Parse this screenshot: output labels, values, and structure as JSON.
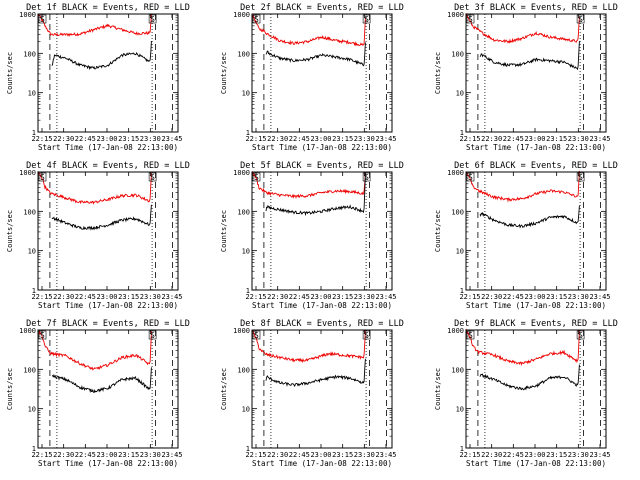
{
  "colors": {
    "events": "#000000",
    "lld": "#ee0000",
    "frame": "#000000",
    "background": "#ffffff"
  },
  "chart_data": [
    {
      "type": "line",
      "title": "Det 1f BLACK = Events, RED = LLD",
      "xlabel": "Start Time (17-Jan-08 22:13:00)",
      "ylabel": "Counts/sec",
      "xlim": [
        0,
        100
      ],
      "ylim": [
        1,
        1000
      ],
      "yscale": "log",
      "xticks": [
        "22:15",
        "22:30",
        "22:45",
        "23:00",
        "23:15",
        "23:30",
        "23:45"
      ],
      "yticks": [
        "1",
        "10",
        "100",
        "1000"
      ],
      "saa_markers": [
        "S",
        "S"
      ],
      "dashed_lines": [
        8.5,
        84,
        96
      ],
      "dotted_lines": [
        13.5,
        81.5
      ],
      "series": [
        {
          "name": "LLD",
          "color": "red",
          "x": [
            0,
            3,
            5,
            8.5,
            10,
            20,
            30,
            40,
            50,
            60,
            70,
            80,
            81
          ],
          "y": [
            1000,
            700,
            500,
            320,
            300,
            300,
            310,
            400,
            510,
            400,
            320,
            330,
            1000
          ]
        },
        {
          "name": "Events",
          "color": "black",
          "x": [
            10,
            11,
            12,
            20,
            30,
            40,
            50,
            60,
            70,
            80,
            81
          ],
          "y": [
            45,
            70,
            90,
            75,
            50,
            42,
            50,
            90,
            100,
            60,
            200
          ]
        }
      ]
    },
    {
      "type": "line",
      "title": "Det 2f BLACK = Events, RED = LLD",
      "xlabel": "Start Time (17-Jan-08 22:13:00)",
      "ylabel": "Counts/sec",
      "xlim": [
        0,
        100
      ],
      "ylim": [
        1,
        1000
      ],
      "yscale": "log",
      "xticks": [
        "22:15",
        "22:30",
        "22:45",
        "23:00",
        "23:15",
        "23:30",
        "23:45"
      ],
      "yticks": [
        "1",
        "10",
        "100",
        "1000"
      ],
      "saa_markers": [
        "S",
        "S"
      ],
      "dashed_lines": [
        8.5,
        84,
        96
      ],
      "dotted_lines": [
        13.5,
        81.5
      ],
      "series": [
        {
          "name": "LLD",
          "color": "red",
          "x": [
            0,
            3,
            5,
            8.5,
            10,
            20,
            30,
            40,
            50,
            60,
            70,
            80,
            81
          ],
          "y": [
            1000,
            600,
            420,
            370,
            330,
            210,
            180,
            200,
            260,
            210,
            190,
            160,
            800
          ]
        },
        {
          "name": "Events",
          "color": "black",
          "x": [
            10,
            11,
            12,
            20,
            30,
            40,
            50,
            60,
            70,
            80,
            81
          ],
          "y": [
            95,
            110,
            100,
            75,
            65,
            70,
            90,
            80,
            70,
            50,
            200
          ]
        }
      ]
    },
    {
      "type": "line",
      "title": "Det 3f BLACK = Events, RED = LLD",
      "xlabel": "Start Time (17-Jan-08 22:13:00)",
      "ylabel": "Counts/sec",
      "xlim": [
        0,
        100
      ],
      "ylim": [
        1,
        1000
      ],
      "yscale": "log",
      "xticks": [
        "22:15",
        "22:30",
        "22:45",
        "23:00",
        "23:15",
        "23:30",
        "23:45"
      ],
      "yticks": [
        "1",
        "10",
        "100",
        "1000"
      ],
      "saa_markers": [
        "S",
        "S"
      ],
      "dashed_lines": [
        8.5,
        84,
        96
      ],
      "dotted_lines": [
        13.5,
        81.5
      ],
      "series": [
        {
          "name": "LLD",
          "color": "red",
          "x": [
            0,
            3,
            5,
            8.5,
            10,
            20,
            30,
            40,
            50,
            60,
            70,
            80,
            81
          ],
          "y": [
            1000,
            650,
            480,
            400,
            360,
            220,
            200,
            240,
            330,
            260,
            230,
            200,
            900
          ]
        },
        {
          "name": "Events",
          "color": "black",
          "x": [
            10,
            11,
            12,
            20,
            30,
            40,
            50,
            60,
            70,
            80,
            81
          ],
          "y": [
            80,
            95,
            90,
            60,
            50,
            52,
            70,
            65,
            60,
            40,
            200
          ]
        }
      ]
    },
    {
      "type": "line",
      "title": "Det 4f BLACK = Events, RED = LLD",
      "xlabel": "Start Time (17-Jan-08 22:13:00)",
      "ylabel": "Counts/sec",
      "xlim": [
        0,
        100
      ],
      "ylim": [
        1,
        1000
      ],
      "yscale": "log",
      "xticks": [
        "22:15",
        "22:30",
        "22:45",
        "23:00",
        "23:15",
        "23:30",
        "23:45"
      ],
      "yticks": [
        "1",
        "10",
        "100",
        "1000"
      ],
      "saa_markers": [
        "S",
        "S"
      ],
      "dashed_lines": [
        8.5,
        84,
        96
      ],
      "dotted_lines": [
        13.5,
        81.5
      ],
      "series": [
        {
          "name": "LLD",
          "color": "red",
          "x": [
            0,
            3,
            5,
            8.5,
            10,
            20,
            30,
            40,
            50,
            60,
            70,
            80,
            81
          ],
          "y": [
            1000,
            700,
            420,
            300,
            280,
            220,
            170,
            170,
            200,
            250,
            260,
            180,
            1000
          ]
        },
        {
          "name": "Events",
          "color": "black",
          "x": [
            10,
            11,
            12,
            20,
            30,
            40,
            50,
            60,
            70,
            80,
            81
          ],
          "y": [
            60,
            70,
            65,
            50,
            38,
            38,
            45,
            60,
            65,
            45,
            150
          ]
        }
      ]
    },
    {
      "type": "line",
      "title": "Det 5f BLACK = Events, RED = LLD",
      "xlabel": "Start Time (17-Jan-08 22:13:00)",
      "ylabel": "Counts/sec",
      "xlim": [
        0,
        100
      ],
      "ylim": [
        1,
        1000
      ],
      "yscale": "log",
      "xticks": [
        "22:15",
        "22:30",
        "22:45",
        "23:00",
        "23:15",
        "23:30",
        "23:45"
      ],
      "yticks": [
        "1",
        "10",
        "100",
        "1000"
      ],
      "saa_markers": [
        "S",
        "S"
      ],
      "dashed_lines": [
        8.5,
        84,
        96
      ],
      "dotted_lines": [
        13.5,
        81.5
      ],
      "series": [
        {
          "name": "LLD",
          "color": "red",
          "x": [
            0,
            3,
            5,
            8.5,
            10,
            20,
            30,
            40,
            50,
            60,
            70,
            80,
            81
          ],
          "y": [
            1000,
            700,
            400,
            330,
            300,
            260,
            240,
            250,
            300,
            330,
            320,
            280,
            1000
          ]
        },
        {
          "name": "Events",
          "color": "black",
          "x": [
            10,
            11,
            12,
            20,
            30,
            40,
            50,
            60,
            70,
            80,
            81
          ],
          "y": [
            110,
            130,
            125,
            110,
            95,
            90,
            100,
            120,
            130,
            100,
            900
          ]
        }
      ]
    },
    {
      "type": "line",
      "title": "Det 6f BLACK = Events, RED = LLD",
      "xlabel": "Start Time (17-Jan-08 22:13:00)",
      "ylabel": "Counts/sec",
      "xlim": [
        0,
        100
      ],
      "ylim": [
        1,
        1000
      ],
      "yscale": "log",
      "xticks": [
        "22:15",
        "22:30",
        "22:45",
        "23:00",
        "23:15",
        "23:30",
        "23:45"
      ],
      "yticks": [
        "1",
        "10",
        "100",
        "1000"
      ],
      "saa_markers": [
        "S",
        "S"
      ],
      "dashed_lines": [
        8.5,
        84,
        96
      ],
      "dotted_lines": [
        13.5,
        81.5
      ],
      "series": [
        {
          "name": "LLD",
          "color": "red",
          "x": [
            0,
            3,
            5,
            8.5,
            10,
            20,
            30,
            40,
            50,
            60,
            70,
            80,
            81
          ],
          "y": [
            1000,
            650,
            420,
            350,
            320,
            230,
            200,
            210,
            280,
            330,
            310,
            230,
            1000
          ]
        },
        {
          "name": "Events",
          "color": "black",
          "x": [
            10,
            11,
            12,
            20,
            30,
            40,
            50,
            60,
            70,
            80,
            81
          ],
          "y": [
            80,
            90,
            85,
            60,
            45,
            42,
            50,
            70,
            75,
            50,
            150
          ]
        }
      ]
    },
    {
      "type": "line",
      "title": "Det 7f BLACK = Events, RED = LLD",
      "xlabel": "Start Time (17-Jan-08 22:13:00)",
      "ylabel": "Counts/sec",
      "xlim": [
        0,
        100
      ],
      "ylim": [
        1,
        1000
      ],
      "yscale": "log",
      "xticks": [
        "22:15",
        "22:30",
        "22:45",
        "23:00",
        "23:15",
        "23:30",
        "23:45"
      ],
      "yticks": [
        "1",
        "10",
        "100",
        "1000"
      ],
      "saa_markers": [
        "S",
        "S"
      ],
      "dashed_lines": [
        8.5,
        84,
        96
      ],
      "dotted_lines": [
        13.5,
        81.5
      ],
      "series": [
        {
          "name": "LLD",
          "color": "red",
          "x": [
            0,
            3,
            5,
            8.5,
            10,
            20,
            30,
            40,
            50,
            60,
            70,
            80,
            81
          ],
          "y": [
            1000,
            700,
            400,
            260,
            250,
            220,
            140,
            100,
            130,
            200,
            230,
            130,
            1000
          ]
        },
        {
          "name": "Events",
          "color": "black",
          "x": [
            10,
            11,
            12,
            20,
            30,
            40,
            50,
            60,
            70,
            80,
            81
          ],
          "y": [
            65,
            70,
            65,
            55,
            35,
            28,
            33,
            55,
            60,
            30,
            120
          ]
        }
      ]
    },
    {
      "type": "line",
      "title": "Det 8f BLACK = Events, RED = LLD",
      "xlabel": "Start Time (17-Jan-08 22:13:00)",
      "ylabel": "Counts/sec",
      "xlim": [
        0,
        100
      ],
      "ylim": [
        1,
        1000
      ],
      "yscale": "log",
      "xticks": [
        "22:15",
        "22:30",
        "22:45",
        "23:00",
        "23:15",
        "23:30",
        "23:45"
      ],
      "yticks": [
        "1",
        "10",
        "100",
        "1000"
      ],
      "saa_markers": [
        "S",
        "S"
      ],
      "dashed_lines": [
        8.5,
        84,
        96
      ],
      "dotted_lines": [
        13.5,
        81.5
      ],
      "series": [
        {
          "name": "LLD",
          "color": "red",
          "x": [
            0,
            3,
            5,
            8.5,
            10,
            20,
            30,
            40,
            50,
            55,
            60,
            70,
            80,
            81
          ],
          "y": [
            1000,
            600,
            350,
            260,
            240,
            200,
            170,
            170,
            220,
            250,
            240,
            220,
            200,
            1000
          ]
        },
        {
          "name": "Events",
          "color": "black",
          "x": [
            10,
            11,
            12,
            20,
            30,
            40,
            50,
            60,
            70,
            80,
            81
          ],
          "y": [
            55,
            65,
            60,
            45,
            40,
            45,
            55,
            65,
            60,
            45,
            200
          ]
        }
      ]
    },
    {
      "type": "line",
      "title": "Det 9f BLACK = Events, RED = LLD",
      "xlabel": "Start Time (17-Jan-08 22:13:00)",
      "ylabel": "Counts/sec",
      "xlim": [
        0,
        100
      ],
      "ylim": [
        1,
        1000
      ],
      "yscale": "log",
      "xticks": [
        "22:15",
        "22:30",
        "22:45",
        "23:00",
        "23:15",
        "23:30",
        "23:45"
      ],
      "yticks": [
        "1",
        "10",
        "100",
        "1000"
      ],
      "saa_markers": [
        "S",
        "S"
      ],
      "dashed_lines": [
        8.5,
        84,
        96
      ],
      "dotted_lines": [
        13.5,
        81.5
      ],
      "series": [
        {
          "name": "LLD",
          "color": "red",
          "x": [
            0,
            3,
            5,
            8.5,
            10,
            20,
            30,
            40,
            50,
            60,
            70,
            80,
            81
          ],
          "y": [
            1000,
            650,
            380,
            280,
            270,
            230,
            160,
            140,
            180,
            250,
            270,
            160,
            1000
          ]
        },
        {
          "name": "Events",
          "color": "black",
          "x": [
            10,
            11,
            12,
            20,
            30,
            40,
            50,
            60,
            70,
            80,
            81
          ],
          "y": [
            70,
            75,
            70,
            55,
            38,
            32,
            38,
            60,
            65,
            38,
            140
          ]
        }
      ]
    }
  ]
}
